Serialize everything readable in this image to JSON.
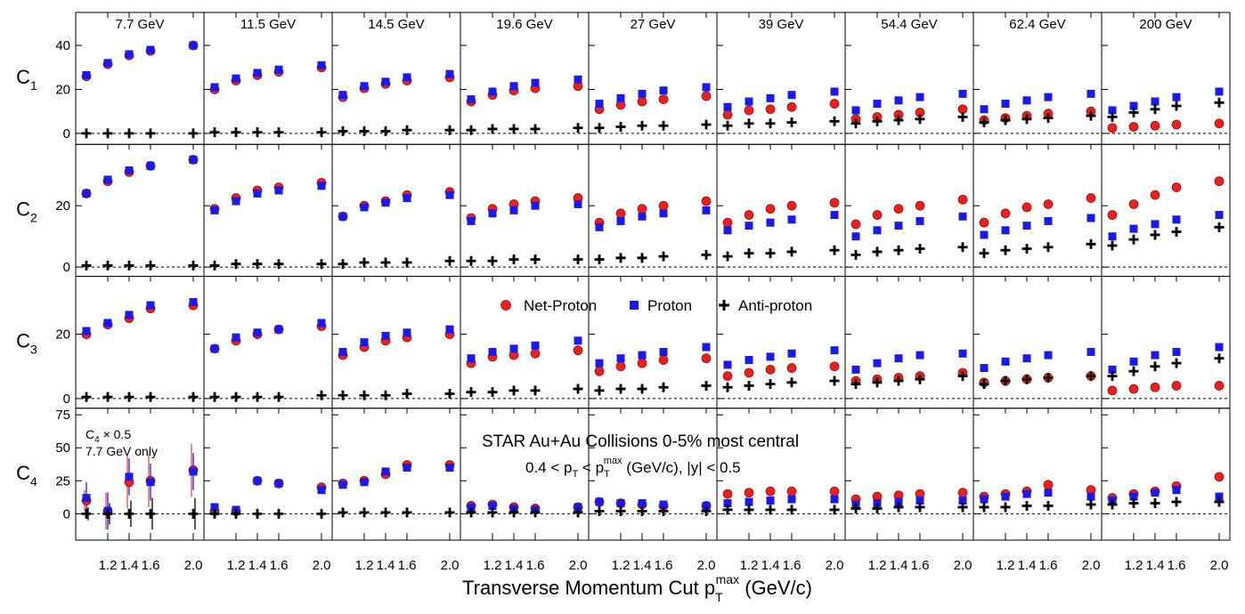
{
  "figure": {
    "xlabel_main": "Transverse Momentum Cut p",
    "xlabel_sub": "T",
    "xlabel_sup": "max",
    "xlabel_unit": " (GeV/c)",
    "legend": {
      "net": "Net-Proton",
      "proton": "Proton",
      "anti": "Anti-proton"
    },
    "annotation_title": "STAR Au+Au Collisions 0-5% most central",
    "annotation_cut": {
      "a": "0.4 < p",
      "b": "T",
      "c": " < p",
      "d": "T",
      "e": "max",
      "f": " (GeV/c), |y| < 0.5"
    },
    "note_c4_a": "C",
    "note_c4_sub": "4",
    "note_c4_b": " × 0.5",
    "note_c4_line2": "7.7 GeV only",
    "colors": {
      "net": "#e8201e",
      "proton": "#1a1af0",
      "anti": "#000000",
      "errbar": "#e84a4a"
    }
  },
  "chart_data": {
    "type": "scatter",
    "x": [
      1.0,
      1.2,
      1.4,
      1.6,
      2.0
    ],
    "xticks": [
      "1.2",
      "1.4",
      "1.6",
      "2.0"
    ],
    "columns": [
      "7.7 GeV",
      "11.5 GeV",
      "14.5 GeV",
      "19.6 GeV",
      "27 GeV",
      "39 GeV",
      "54.4 GeV",
      "62.4 GeV",
      "200 GeV"
    ],
    "rows": [
      {
        "name": "C",
        "sub": "1",
        "ylim": [
          -5,
          55
        ],
        "yticks": [
          "0",
          "20",
          "40"
        ]
      },
      {
        "name": "C",
        "sub": "2",
        "ylim": [
          -3,
          40
        ],
        "yticks": [
          "0",
          "20",
          "40"
        ]
      },
      {
        "name": "C",
        "sub": "3",
        "ylim": [
          -3,
          38
        ],
        "yticks": [
          "0",
          "20"
        ]
      },
      {
        "name": "C",
        "sub": "4",
        "ylim": [
          -20,
          80
        ],
        "yticks": [
          "0",
          "25",
          "50",
          "75"
        ]
      }
    ],
    "series": [
      {
        "name": "Net-Proton",
        "values": [
          [
            [
              26,
              31.5,
              35.5,
              37.5,
              40
            ],
            [
              20,
              24,
              26.5,
              28,
              30
            ],
            [
              16.5,
              20.5,
              22.5,
              24,
              25.5
            ],
            [
              14.5,
              17.5,
              19.5,
              20.5,
              21.5
            ],
            [
              11,
              13,
              14.5,
              15.5,
              17
            ],
            [
              8.5,
              10.5,
              11,
              12,
              13.5
            ],
            [
              6.5,
              7.5,
              8.5,
              9.5,
              11
            ],
            [
              6,
              7,
              8,
              9,
              10
            ],
            [
              2.5,
              3,
              3.5,
              4,
              4.5
            ]
          ],
          [
            [
              24,
              28,
              31,
              33,
              35
            ],
            [
              19,
              22.5,
              25,
              26,
              27.5
            ],
            [
              16.5,
              20,
              21.5,
              23.5,
              24.5
            ],
            [
              16,
              19,
              20.5,
              21.5,
              22.5
            ],
            [
              14.5,
              17.5,
              19,
              20,
              21.5
            ],
            [
              14.5,
              17,
              19,
              20,
              21
            ],
            [
              14,
              17,
              19,
              20,
              22
            ],
            [
              14.5,
              17.5,
              19.5,
              20.5,
              22.5
            ],
            [
              17,
              20.5,
              23.5,
              26,
              28
            ]
          ],
          [
            [
              20,
              23,
              25,
              28,
              29
            ],
            [
              15.5,
              18,
              20,
              21.5,
              22.5
            ],
            [
              13.5,
              16,
              18,
              19,
              20
            ],
            [
              11,
              13,
              13.5,
              14,
              15
            ],
            [
              8.5,
              10,
              11,
              12,
              12.5
            ],
            [
              7,
              8,
              9,
              9.5,
              10
            ],
            [
              5.5,
              6,
              6.5,
              7,
              8
            ],
            [
              5,
              5.5,
              6,
              6.5,
              7
            ],
            [
              2.5,
              3,
              3.5,
              4,
              4
            ]
          ],
          [
            [
              10,
              2,
              24,
              25,
              33
            ],
            [
              2,
              2,
              25,
              23,
              20
            ],
            [
              23,
              25,
              30,
              37,
              37
            ],
            [
              6,
              7,
              5,
              4,
              5
            ],
            [
              9,
              8,
              7,
              6,
              6
            ],
            [
              15,
              16,
              17,
              17,
              17
            ],
            [
              11,
              13,
              14,
              15,
              16
            ],
            [
              13,
              15,
              17,
              22,
              18
            ],
            [
              12,
              15,
              17,
              21,
              28
            ]
          ]
        ]
      },
      {
        "name": "Proton",
        "values": [
          [
            [
              26.5,
              32,
              36,
              38,
              40
            ],
            [
              21,
              25,
              27.5,
              29,
              31
            ],
            [
              17.5,
              21.5,
              23.5,
              25.5,
              27
            ],
            [
              15.5,
              19,
              21.5,
              23,
              24.5
            ],
            [
              13.5,
              16,
              18,
              19.5,
              21
            ],
            [
              12,
              14.5,
              16,
              17.5,
              19
            ],
            [
              10.5,
              13.5,
              15,
              16.5,
              18
            ],
            [
              11,
              13.5,
              15,
              16.5,
              18
            ],
            [
              10.5,
              12.5,
              14.5,
              16.5,
              19
            ]
          ],
          [
            [
              24,
              28.5,
              31.5,
              33,
              35
            ],
            [
              18.5,
              21.5,
              24,
              25,
              26.5
            ],
            [
              16.5,
              19.5,
              21,
              22.5,
              23.5
            ],
            [
              15,
              17.5,
              18.5,
              20,
              20.5
            ],
            [
              13,
              15,
              16.5,
              17.5,
              18.5
            ],
            [
              12,
              13.5,
              14.5,
              15.5,
              17
            ],
            [
              10,
              12,
              13.5,
              15,
              16.5
            ],
            [
              10.5,
              12,
              13.5,
              15,
              16
            ],
            [
              10,
              12.5,
              14,
              15.5,
              17
            ]
          ],
          [
            [
              21,
              23.5,
              26,
              29,
              30
            ],
            [
              15.5,
              19,
              20.5,
              21.5,
              23.5
            ],
            [
              14.5,
              17.5,
              19.5,
              20.5,
              21.5
            ],
            [
              12.5,
              14.5,
              15.5,
              16.5,
              18
            ],
            [
              11,
              12.5,
              13.5,
              14.5,
              16
            ],
            [
              10.5,
              12,
              13,
              14,
              15
            ],
            [
              9,
              11,
              12.5,
              13.5,
              14
            ],
            [
              9.5,
              11.5,
              12.5,
              13.5,
              14.5
            ],
            [
              9,
              11.5,
              13.5,
              14.5,
              16
            ]
          ],
          [
            [
              12,
              2,
              28,
              24,
              32
            ],
            [
              5,
              3,
              25,
              23,
              18
            ],
            [
              22,
              24,
              32,
              35,
              35
            ],
            [
              5,
              6,
              4,
              3,
              5
            ],
            [
              9,
              8,
              8,
              7,
              6
            ],
            [
              8,
              9,
              10,
              11,
              11
            ],
            [
              7,
              8,
              9,
              10,
              10
            ],
            [
              11,
              13,
              15,
              16,
              13
            ],
            [
              10,
              13,
              16,
              18,
              13
            ]
          ]
        ]
      },
      {
        "name": "Anti-proton",
        "values": [
          [
            [
              0,
              0,
              0,
              0,
              0
            ],
            [
              0.5,
              0.5,
              0.5,
              0.5,
              0.5
            ],
            [
              1,
              1,
              1,
              1.5,
              1.5
            ],
            [
              1.5,
              2,
              2,
              2,
              2.5
            ],
            [
              2.5,
              3,
              3.5,
              3.5,
              4
            ],
            [
              3.5,
              4.5,
              4.5,
              5,
              5.5
            ],
            [
              4.5,
              5.5,
              6,
              6.5,
              7.5
            ],
            [
              5,
              6,
              6.5,
              7,
              8
            ],
            [
              7.5,
              9.5,
              11,
              12.5,
              14
            ]
          ],
          [
            [
              0.5,
              0.5,
              0.5,
              0.5,
              0.5
            ],
            [
              0.5,
              1,
              1,
              1,
              1
            ],
            [
              1,
              1.5,
              1.5,
              1.5,
              2
            ],
            [
              2,
              2,
              2.5,
              2.5,
              2.5
            ],
            [
              2.5,
              3,
              3,
              3.5,
              4
            ],
            [
              3.5,
              4.5,
              4.5,
              5,
              5.5
            ],
            [
              4,
              5,
              5.5,
              6,
              6.5
            ],
            [
              4.5,
              5.5,
              6,
              6.5,
              7.5
            ],
            [
              7,
              9,
              10.5,
              11.5,
              13
            ]
          ],
          [
            [
              0.5,
              0.5,
              0.5,
              0.5,
              0.5
            ],
            [
              0.5,
              0.5,
              0.5,
              0.5,
              1
            ],
            [
              1,
              1,
              1,
              1.5,
              1.5
            ],
            [
              2,
              2,
              2.5,
              2.5,
              3
            ],
            [
              2.5,
              3,
              3,
              3.5,
              4
            ],
            [
              3.5,
              4,
              4.5,
              5,
              5.5
            ],
            [
              4.5,
              5,
              5.5,
              6,
              7
            ],
            [
              4.5,
              5.5,
              6,
              6.5,
              7
            ],
            [
              7,
              8.5,
              10,
              11,
              12.5
            ]
          ],
          [
            [
              0,
              0,
              0,
              0,
              0
            ],
            [
              0,
              0,
              0,
              0,
              0
            ],
            [
              1,
              1,
              1,
              1,
              1
            ],
            [
              1,
              1,
              1,
              1,
              1
            ],
            [
              2,
              2,
              2,
              2,
              2
            ],
            [
              3,
              3,
              3,
              3,
              3
            ],
            [
              4,
              4,
              5,
              5,
              5
            ],
            [
              5,
              5,
              6,
              6,
              7
            ],
            [
              7,
              8,
              8,
              9,
              9
            ]
          ]
        ]
      }
    ],
    "c4_errors_7_7": [
      [
        8,
        14,
        20,
        20,
        20
      ],
      [
        12,
        14,
        14,
        14,
        14
      ],
      [
        5,
        8,
        10,
        12,
        12
      ]
    ],
    "grid": false,
    "legend_position": "middle, row 3 (C3), columns 4-6",
    "annotation_position": "row 4 (C4), columns 4-7"
  }
}
